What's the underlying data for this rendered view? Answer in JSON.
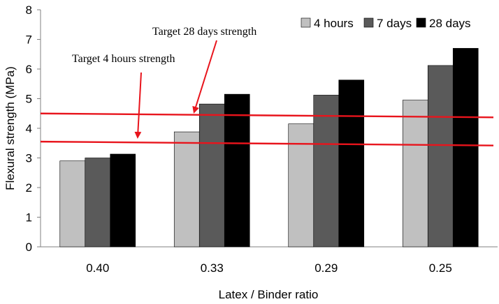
{
  "chart_data": {
    "type": "bar",
    "xlabel": "Latex / Binder ratio",
    "ylabel": "Flexural strength (MPa)",
    "ylim": [
      0,
      8
    ],
    "yticks": [
      0,
      1,
      2,
      3,
      4,
      5,
      6,
      7,
      8
    ],
    "grid": false,
    "legend_position": "top-right",
    "categories": [
      "0.40",
      "0.33",
      "0.29",
      "0.25"
    ],
    "series": [
      {
        "name": "4 hours",
        "color": "#c0c0c0",
        "values": [
          2.9,
          3.88,
          4.15,
          4.95
        ]
      },
      {
        "name": "7 days",
        "color": "#5a5a5a",
        "values": [
          3.0,
          4.82,
          5.12,
          6.12
        ]
      },
      {
        "name": "28 days",
        "color": "#000000",
        "values": [
          3.13,
          5.15,
          5.63,
          6.7
        ]
      }
    ],
    "reference_lines": [
      {
        "label": "Target 28 days strength",
        "color": "#e8141c",
        "y_start": 4.5,
        "y_end": 4.37
      },
      {
        "label": "Target 4 hours strength",
        "color": "#e8141c",
        "y_start": 3.55,
        "y_end": 3.42
      }
    ]
  }
}
